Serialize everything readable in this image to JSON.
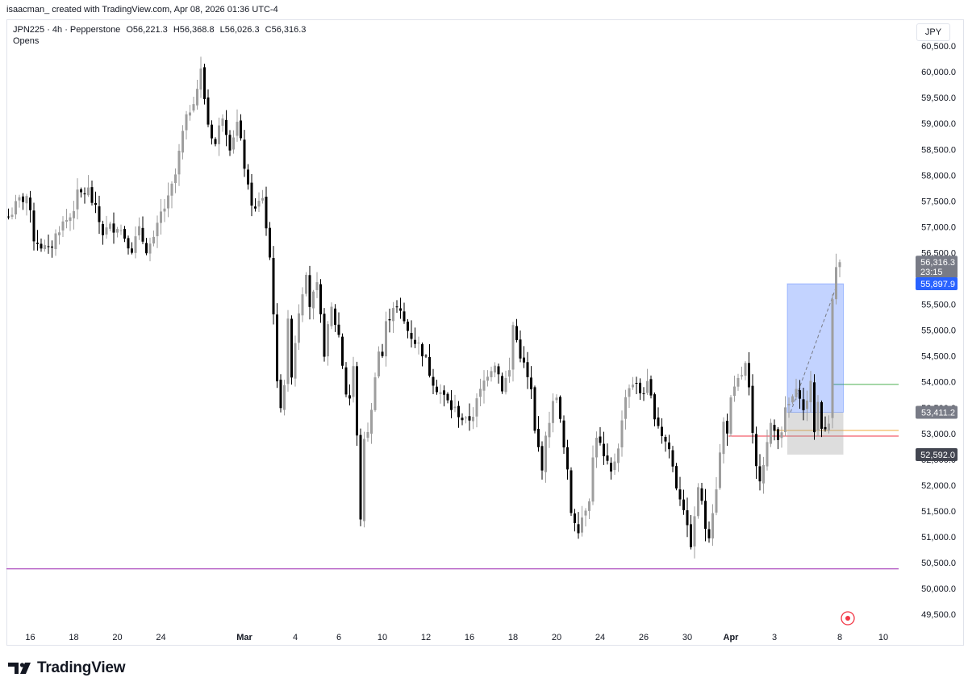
{
  "header": {
    "text": "isaacman_ created with TradingView.com, Apr 08, 2026 01:36 UTC-4"
  },
  "legend": {
    "symbol": "JPN225 · 4h · Pepperstone",
    "open": "O56,221.3",
    "high": "H56,368.8",
    "low": "L56,026.3",
    "close": "C56,316.3",
    "indicator": "Opens"
  },
  "currency": "JPY",
  "footer": {
    "brand": "TradingView"
  },
  "colors": {
    "up_candle": "#9e9e9e",
    "down_candle": "#000000",
    "blue_tag": "#2962ff",
    "gray_tag": "#787b86",
    "dark_tag": "#434651",
    "green_line": "#4caf50",
    "orange_line": "#f2a93b",
    "red_line": "#f23645",
    "magenta_line": "#9c27b0",
    "target_zone": "#2962ff",
    "stop_zone": "#9e9e9e"
  },
  "chart_data": {
    "type": "candlestick",
    "ylim": [
      49300,
      61000
    ],
    "y_ticks": [
      49500,
      50000,
      50500,
      51000,
      51500,
      52000,
      52500,
      53000,
      53500,
      54000,
      54500,
      55000,
      55500,
      56000,
      56500,
      57000,
      57500,
      58000,
      58500,
      59000,
      59500,
      60000,
      60500
    ],
    "x_labels": [
      {
        "label": "16",
        "bar": 6
      },
      {
        "label": "18",
        "bar": 18
      },
      {
        "label": "20",
        "bar": 30
      },
      {
        "label": "24",
        "bar": 42
      },
      {
        "label": "Mar",
        "bar": 65,
        "bold": true
      },
      {
        "label": "4",
        "bar": 79
      },
      {
        "label": "6",
        "bar": 91
      },
      {
        "label": "10",
        "bar": 103
      },
      {
        "label": "12",
        "bar": 115
      },
      {
        "label": "16",
        "bar": 127
      },
      {
        "label": "18",
        "bar": 139
      },
      {
        "label": "20",
        "bar": 151
      },
      {
        "label": "24",
        "bar": 163
      },
      {
        "label": "26",
        "bar": 175
      },
      {
        "label": "30",
        "bar": 187
      },
      {
        "label": "Apr",
        "bar": 199,
        "bold": true
      },
      {
        "label": "3",
        "bar": 211
      },
      {
        "label": "8",
        "bar": 229
      },
      {
        "label": "10",
        "bar": 241
      }
    ],
    "anchors": [
      [
        0,
        57200
      ],
      [
        3,
        57500
      ],
      [
        5,
        57600
      ],
      [
        7,
        56800
      ],
      [
        11,
        56500
      ],
      [
        14,
        57000
      ],
      [
        17,
        57200
      ],
      [
        19,
        57600
      ],
      [
        22,
        57700
      ],
      [
        24,
        57300
      ],
      [
        26,
        56900
      ],
      [
        30,
        57050
      ],
      [
        34,
        56600
      ],
      [
        36,
        56900
      ],
      [
        38,
        56600
      ],
      [
        40,
        56700
      ],
      [
        42,
        57250
      ],
      [
        44,
        57500
      ],
      [
        46,
        58000
      ],
      [
        48,
        58800
      ],
      [
        50,
        59300
      ],
      [
        52,
        59700
      ],
      [
        53,
        60000
      ],
      [
        55,
        59000
      ],
      [
        57,
        58600
      ],
      [
        59,
        59200
      ],
      [
        61,
        58600
      ],
      [
        63,
        59000
      ],
      [
        65,
        58200
      ],
      [
        66,
        57700
      ],
      [
        68,
        57300
      ],
      [
        70,
        57600
      ],
      [
        72,
        56400
      ],
      [
        73,
        55400
      ],
      [
        74,
        53900
      ],
      [
        75,
        53600
      ],
      [
        76,
        54000
      ],
      [
        77,
        55100
      ],
      [
        78,
        54200
      ],
      [
        80,
        55400
      ],
      [
        82,
        56200
      ],
      [
        83,
        55500
      ],
      [
        85,
        55800
      ],
      [
        87,
        54600
      ],
      [
        89,
        55400
      ],
      [
        91,
        54900
      ],
      [
        93,
        53800
      ],
      [
        94,
        53700
      ],
      [
        95,
        54300
      ],
      [
        96,
        52900
      ],
      [
        97,
        51400
      ],
      [
        98,
        52800
      ],
      [
        100,
        53400
      ],
      [
        101,
        54200
      ],
      [
        102,
        54600
      ],
      [
        103,
        54500
      ],
      [
        104,
        55100
      ],
      [
        106,
        55500
      ],
      [
        108,
        55300
      ],
      [
        110,
        55000
      ],
      [
        112,
        54800
      ],
      [
        114,
        54600
      ],
      [
        116,
        54200
      ],
      [
        118,
        53900
      ],
      [
        120,
        53700
      ],
      [
        122,
        53500
      ],
      [
        124,
        53400
      ],
      [
        126,
        53200
      ],
      [
        128,
        53400
      ],
      [
        130,
        53800
      ],
      [
        132,
        54200
      ],
      [
        134,
        54400
      ],
      [
        136,
        53900
      ],
      [
        138,
        54200
      ],
      [
        139,
        55100
      ],
      [
        140,
        54800
      ],
      [
        142,
        54300
      ],
      [
        144,
        53800
      ],
      [
        145,
        53000
      ],
      [
        147,
        52400
      ],
      [
        149,
        53300
      ],
      [
        151,
        53800
      ],
      [
        152,
        53200
      ],
      [
        154,
        52200
      ],
      [
        155,
        51500
      ],
      [
        157,
        51200
      ],
      [
        158,
        51400
      ],
      [
        160,
        51800
      ],
      [
        161,
        52500
      ],
      [
        162,
        53000
      ],
      [
        164,
        52500
      ],
      [
        166,
        52200
      ],
      [
        168,
        52800
      ],
      [
        169,
        53200
      ],
      [
        170,
        53800
      ],
      [
        172,
        54000
      ],
      [
        174,
        53800
      ],
      [
        176,
        53900
      ],
      [
        178,
        53400
      ],
      [
        180,
        53000
      ],
      [
        182,
        52700
      ],
      [
        184,
        52000
      ],
      [
        186,
        51600
      ],
      [
        187,
        51100
      ],
      [
        188,
        50900
      ],
      [
        189,
        51300
      ],
      [
        190,
        52000
      ],
      [
        192,
        51200
      ],
      [
        193,
        51100
      ],
      [
        195,
        52000
      ],
      [
        196,
        52600
      ],
      [
        197,
        53200
      ],
      [
        198,
        53100
      ],
      [
        199,
        53600
      ],
      [
        201,
        54000
      ],
      [
        203,
        54300
      ],
      [
        204,
        53800
      ],
      [
        205,
        52900
      ],
      [
        206,
        52300
      ],
      [
        207,
        52200
      ],
      [
        209,
        52800
      ],
      [
        210,
        53100
      ],
      [
        212,
        53000
      ],
      [
        213,
        53100
      ],
      [
        214,
        53400
      ],
      [
        216,
        53700
      ],
      [
        218,
        53800
      ],
      [
        219,
        53400
      ],
      [
        220,
        53700
      ],
      [
        221,
        53900
      ],
      [
        222,
        53100
      ],
      [
        223,
        53600
      ],
      [
        224,
        53200
      ],
      [
        225,
        53000
      ],
      [
        226,
        53200
      ],
      [
        227,
        55600
      ],
      [
        228,
        56221
      ],
      [
        229,
        56316
      ]
    ],
    "key_candles": [
      {
        "bar": 227,
        "open": 53300,
        "high": 55700,
        "low": 53100,
        "close": 55600
      },
      {
        "bar": 228,
        "open": 55600,
        "high": 56480,
        "low": 55500,
        "close": 56221
      },
      {
        "bar": 229,
        "open": 56221.3,
        "high": 56368.8,
        "low": 56026.3,
        "close": 56316.3
      }
    ],
    "levels": [
      {
        "name": "green-level",
        "price": 53950,
        "from_bar": 228,
        "color": "#4caf50"
      },
      {
        "name": "orange-level",
        "price": 53060,
        "from_bar": 212,
        "color": "#f2a93b"
      },
      {
        "name": "red-level",
        "price": 52950,
        "from_bar": 199,
        "color": "#f23645"
      },
      {
        "name": "magenta-level",
        "price": 50380,
        "from_bar": 0,
        "color": "#9c27b0"
      }
    ],
    "position": {
      "from_bar": 215,
      "to_bar": 230,
      "entry": 53411.2,
      "target": 55897.9,
      "stop": 52592.0
    },
    "price_tags": [
      {
        "name": "last-price-tag",
        "label": "56,316.3",
        "sub": "23:15",
        "price": 56316.3,
        "style": "gray"
      },
      {
        "name": "target-price-tag",
        "label": "55,897.9",
        "price": 55897.9,
        "style": "blue"
      },
      {
        "name": "entry-price-tag",
        "label": "53,411.2",
        "price": 53411.2,
        "style": "gray"
      },
      {
        "name": "stop-price-tag",
        "label": "52,592.0",
        "price": 52592.0,
        "style": "dark"
      }
    ]
  }
}
